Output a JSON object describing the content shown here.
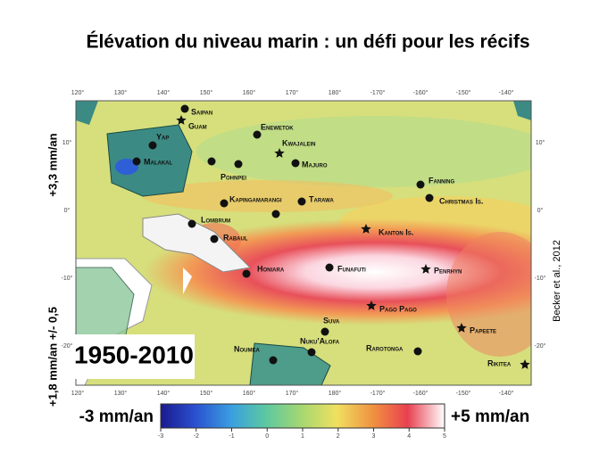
{
  "title": "Élévation du niveau marin : un défi pour les récifs",
  "left_labels": [
    "+3,3 mm/an",
    "+1,8 mm/an +/- 0,5"
  ],
  "credit": "Becker et al., 2012",
  "period": "1950-2010",
  "longitude_labels": [
    "120°",
    "130°",
    "140°",
    "150°",
    "160°",
    "170°",
    "180°",
    "-170°",
    "-160°",
    "-150°",
    "-140°"
  ],
  "latitude_labels": [
    "10°",
    "0°",
    "-10°",
    "-20°"
  ],
  "places": [
    {
      "label": "Saipan",
      "marker": "dot"
    },
    {
      "label": "Guam",
      "marker": "star"
    },
    {
      "label": "Yap",
      "marker": "dot"
    },
    {
      "label": "Malakal",
      "marker": "dot"
    },
    {
      "label": "Enewetok",
      "marker": "dot"
    },
    {
      "label": "Kwajalein",
      "marker": "star"
    },
    {
      "label": "Majuro",
      "marker": "dot"
    },
    {
      "label": "Pohnpei",
      "marker": "dot"
    },
    {
      "label": "Kapingamarangi",
      "marker": "dot"
    },
    {
      "label": "Tarawa",
      "marker": "dot"
    },
    {
      "label": "Lombrum",
      "marker": "dot"
    },
    {
      "label": "Rabaul",
      "marker": "dot"
    },
    {
      "label": "Honiara",
      "marker": "dot"
    },
    {
      "label": "Funafuti",
      "marker": "dot"
    },
    {
      "label": "Fanning",
      "marker": "dot"
    },
    {
      "label": "Christmas Is.",
      "marker": "dot"
    },
    {
      "label": "Kanton Is.",
      "marker": "star"
    },
    {
      "label": "Penrhyn",
      "marker": "star"
    },
    {
      "label": "Pago Pago",
      "marker": "star"
    },
    {
      "label": "Suva",
      "marker": "dot"
    },
    {
      "label": "Nuku'Alofa",
      "marker": "dot"
    },
    {
      "label": "Papeete",
      "marker": "star"
    },
    {
      "label": "Rarotonga",
      "marker": "dot"
    },
    {
      "label": "Rikitea",
      "marker": "star"
    },
    {
      "label": "Noumea",
      "marker": "dot"
    }
  ],
  "colorbar": {
    "min_label": "-3 mm/an",
    "max_label": "+5 mm/an",
    "ticks": [
      -3,
      -2,
      -1,
      0,
      1,
      2,
      3,
      4,
      5
    ]
  }
}
